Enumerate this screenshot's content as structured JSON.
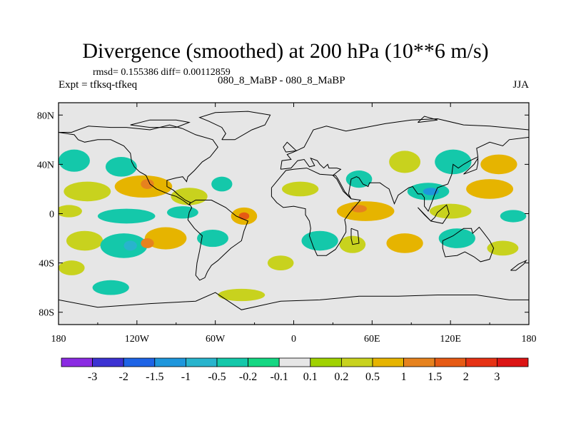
{
  "chart_data": {
    "type": "heatmap",
    "title": "Divergence (smoothed) at 200 hPa (10**6 m/s)",
    "stats_line": "rmsd= 0.155386 diff= 0.00112859",
    "experiment_label": "Expt = tfksq-tfkeq",
    "case_label": "080_8_MaBP - 080_8_MaBP",
    "season_label": "JJA",
    "x_range": [
      -180,
      180
    ],
    "y_range": [
      -90,
      90
    ],
    "x_ticks": [
      {
        "value": -180,
        "label": "180"
      },
      {
        "value": -120,
        "label": "120W"
      },
      {
        "value": -60,
        "label": "60W"
      },
      {
        "value": 0,
        "label": "0"
      },
      {
        "value": 60,
        "label": "60E"
      },
      {
        "value": 120,
        "label": "120E"
      },
      {
        "value": 180,
        "label": "180"
      }
    ],
    "y_ticks": [
      {
        "value": 80,
        "label": "80N"
      },
      {
        "value": 40,
        "label": "40N"
      },
      {
        "value": 0,
        "label": "0"
      },
      {
        "value": -40,
        "label": "40S"
      },
      {
        "value": -80,
        "label": "80S"
      }
    ],
    "levels": [
      -3,
      -2,
      -1.5,
      -1,
      -0.5,
      -0.2,
      -0.1,
      0.1,
      0.2,
      0.5,
      1,
      1.5,
      2,
      3
    ],
    "level_labels": [
      "-3",
      "-2",
      "-1.5",
      "-1",
      "-0.5",
      "-0.2",
      "-0.1",
      "0.1",
      "0.2",
      "0.5",
      "1",
      "1.5",
      "2",
      "3"
    ],
    "colorbar_colors": [
      "#8a2be2",
      "#3c32d2",
      "#1e64e6",
      "#1e96dc",
      "#28b4cd",
      "#14c8aa",
      "#14d782",
      "#e6e6e6",
      "#a0d200",
      "#c8d21e",
      "#e6b400",
      "#e6821e",
      "#e65a14",
      "#e63214",
      "#dc1414"
    ],
    "blobs": [
      {
        "lon": -168,
        "lat": 43,
        "rx": 12,
        "ry": 9,
        "value": -0.3
      },
      {
        "lon": -132,
        "lat": 38,
        "rx": 12,
        "ry": 8,
        "value": -0.3
      },
      {
        "lon": -158,
        "lat": 18,
        "rx": 18,
        "ry": 8,
        "value": 0.3
      },
      {
        "lon": -115,
        "lat": 22,
        "rx": 22,
        "ry": 9,
        "value": 0.5
      },
      {
        "lon": -112,
        "lat": 24,
        "rx": 5,
        "ry": 4,
        "value": 1.2
      },
      {
        "lon": -80,
        "lat": 14,
        "rx": 14,
        "ry": 7,
        "value": 0.3
      },
      {
        "lon": -55,
        "lat": 24,
        "rx": 8,
        "ry": 6,
        "value": -0.3
      },
      {
        "lon": -172,
        "lat": 2,
        "rx": 10,
        "ry": 5,
        "value": 0.3
      },
      {
        "lon": -128,
        "lat": -2,
        "rx": 22,
        "ry": 6,
        "value": -0.3
      },
      {
        "lon": -85,
        "lat": 1,
        "rx": 12,
        "ry": 5,
        "value": -0.3
      },
      {
        "lon": -38,
        "lat": -2,
        "rx": 10,
        "ry": 7,
        "value": 0.8
      },
      {
        "lon": -38,
        "lat": -2,
        "rx": 4,
        "ry": 3,
        "value": 1.6
      },
      {
        "lon": -160,
        "lat": -22,
        "rx": 14,
        "ry": 8,
        "value": 0.3
      },
      {
        "lon": -130,
        "lat": -26,
        "rx": 18,
        "ry": 10,
        "value": -0.3
      },
      {
        "lon": -125,
        "lat": -26,
        "rx": 5,
        "ry": 4,
        "value": -0.8
      },
      {
        "lon": -98,
        "lat": -20,
        "rx": 16,
        "ry": 9,
        "value": 0.5
      },
      {
        "lon": -112,
        "lat": -24,
        "rx": 5,
        "ry": 4,
        "value": 1.2
      },
      {
        "lon": -62,
        "lat": -20,
        "rx": 12,
        "ry": 7,
        "value": -0.3
      },
      {
        "lon": -140,
        "lat": -60,
        "rx": 14,
        "ry": 6,
        "value": -0.3
      },
      {
        "lon": -170,
        "lat": -44,
        "rx": 10,
        "ry": 6,
        "value": 0.3
      },
      {
        "lon": -40,
        "lat": -66,
        "rx": 18,
        "ry": 5,
        "value": 0.3
      },
      {
        "lon": 5,
        "lat": 20,
        "rx": 14,
        "ry": 6,
        "value": 0.3
      },
      {
        "lon": 50,
        "lat": 28,
        "rx": 10,
        "ry": 7,
        "value": -0.3
      },
      {
        "lon": 85,
        "lat": 42,
        "rx": 12,
        "ry": 9,
        "value": 0.3
      },
      {
        "lon": 122,
        "lat": 42,
        "rx": 14,
        "ry": 10,
        "value": -0.3
      },
      {
        "lon": 157,
        "lat": 40,
        "rx": 14,
        "ry": 8,
        "value": 0.5
      },
      {
        "lon": 103,
        "lat": 18,
        "rx": 16,
        "ry": 7,
        "value": -0.5
      },
      {
        "lon": 105,
        "lat": 18,
        "rx": 6,
        "ry": 3,
        "value": -1.2
      },
      {
        "lon": 150,
        "lat": 20,
        "rx": 18,
        "ry": 8,
        "value": 0.5
      },
      {
        "lon": 55,
        "lat": 2,
        "rx": 22,
        "ry": 8,
        "value": 0.5
      },
      {
        "lon": 50,
        "lat": 4,
        "rx": 6,
        "ry": 3,
        "value": 1.2
      },
      {
        "lon": 120,
        "lat": 2,
        "rx": 16,
        "ry": 6,
        "value": 0.3
      },
      {
        "lon": 168,
        "lat": -2,
        "rx": 10,
        "ry": 5,
        "value": -0.3
      },
      {
        "lon": 20,
        "lat": -22,
        "rx": 14,
        "ry": 8,
        "value": -0.3
      },
      {
        "lon": 45,
        "lat": -25,
        "rx": 10,
        "ry": 7,
        "value": 0.3
      },
      {
        "lon": 85,
        "lat": -24,
        "rx": 14,
        "ry": 8,
        "value": 0.5
      },
      {
        "lon": 125,
        "lat": -20,
        "rx": 14,
        "ry": 8,
        "value": -0.3
      },
      {
        "lon": 160,
        "lat": -28,
        "rx": 12,
        "ry": 6,
        "value": 0.3
      },
      {
        "lon": -10,
        "lat": -40,
        "rx": 10,
        "ry": 6,
        "value": 0.3
      }
    ],
    "coastlines": [
      [
        [
          -180,
          66
        ],
        [
          -170,
          66
        ],
        [
          -165,
          68
        ],
        [
          -157,
          71
        ],
        [
          -140,
          70
        ],
        [
          -128,
          70
        ],
        [
          -110,
          68
        ],
        [
          -95,
          72
        ],
        [
          -85,
          69
        ],
        [
          -75,
          64
        ],
        [
          -62,
          60
        ],
        [
          -58,
          54
        ],
        [
          -64,
          46
        ],
        [
          -70,
          42
        ],
        [
          -76,
          35
        ],
        [
          -81,
          30
        ],
        [
          -82,
          26
        ],
        [
          -85,
          30
        ],
        [
          -90,
          29
        ],
        [
          -97,
          27
        ],
        [
          -97,
          22
        ],
        [
          -92,
          19
        ],
        [
          -88,
          15
        ],
        [
          -83,
          11
        ],
        [
          -79,
          9
        ],
        [
          -80,
          7
        ],
        [
          -85,
          11
        ],
        [
          -90,
          14
        ],
        [
          -96,
          16
        ],
        [
          -105,
          20
        ],
        [
          -110,
          24
        ],
        [
          -113,
          31
        ],
        [
          -118,
          34
        ],
        [
          -122,
          38
        ],
        [
          -124,
          42
        ],
        [
          -125,
          49
        ],
        [
          -130,
          55
        ],
        [
          -140,
          60
        ],
        [
          -150,
          60
        ],
        [
          -160,
          58
        ],
        [
          -165,
          60
        ],
        [
          -168,
          64
        ],
        [
          -180,
          66
        ]
      ],
      [
        [
          -80,
          8
        ],
        [
          -75,
          11
        ],
        [
          -63,
          11
        ],
        [
          -52,
          5
        ],
        [
          -44,
          -2
        ],
        [
          -35,
          -6
        ],
        [
          -38,
          -14
        ],
        [
          -40,
          -22
        ],
        [
          -48,
          -28
        ],
        [
          -54,
          -34
        ],
        [
          -58,
          -38
        ],
        [
          -63,
          -42
        ],
        [
          -66,
          -47
        ],
        [
          -68,
          -52
        ],
        [
          -72,
          -54
        ],
        [
          -75,
          -50
        ],
        [
          -74,
          -40
        ],
        [
          -72,
          -30
        ],
        [
          -70,
          -18
        ],
        [
          -76,
          -12
        ],
        [
          -81,
          -5
        ],
        [
          -80,
          1
        ],
        [
          -78,
          5
        ],
        [
          -80,
          8
        ]
      ],
      [
        [
          -55,
          60
        ],
        [
          -45,
          60
        ],
        [
          -32,
          68
        ],
        [
          -22,
          72
        ],
        [
          -18,
          80
        ],
        [
          -35,
          83
        ],
        [
          -60,
          82
        ],
        [
          -72,
          78
        ],
        [
          -65,
          75
        ],
        [
          -55,
          70
        ],
        [
          -52,
          65
        ],
        [
          -55,
          60
        ]
      ],
      [
        [
          -10,
          36
        ],
        [
          -9,
          43
        ],
        [
          -2,
          44
        ],
        [
          -5,
          48
        ],
        [
          0,
          50
        ],
        [
          4,
          52
        ],
        [
          8,
          54
        ],
        [
          10,
          58
        ],
        [
          15,
          68
        ],
        [
          25,
          71
        ],
        [
          40,
          67
        ],
        [
          45,
          68
        ],
        [
          55,
          70
        ],
        [
          70,
          73
        ],
        [
          90,
          76
        ],
        [
          110,
          77
        ],
        [
          130,
          72
        ],
        [
          150,
          71
        ],
        [
          170,
          69
        ],
        [
          180,
          68
        ],
        [
          180,
          62
        ],
        [
          165,
          60
        ],
        [
          160,
          55
        ],
        [
          150,
          58
        ],
        [
          140,
          53
        ],
        [
          141,
          46
        ],
        [
          135,
          43
        ],
        [
          130,
          40
        ],
        [
          126,
          37
        ],
        [
          122,
          40
        ],
        [
          121,
          32
        ],
        [
          118,
          24
        ],
        [
          110,
          21
        ],
        [
          108,
          16
        ],
        [
          106,
          10
        ],
        [
          103,
          2
        ],
        [
          100,
          6
        ],
        [
          100,
          13
        ],
        [
          98,
          16
        ],
        [
          95,
          16
        ],
        [
          91,
          22
        ],
        [
          88,
          21
        ],
        [
          80,
          15
        ],
        [
          77,
          8
        ],
        [
          73,
          20
        ],
        [
          70,
          22
        ],
        [
          66,
          25
        ],
        [
          58,
          25
        ],
        [
          57,
          22
        ],
        [
          53,
          24
        ],
        [
          50,
          29
        ],
        [
          48,
          30
        ],
        [
          44,
          28
        ],
        [
          42,
          16
        ],
        [
          44,
          12
        ],
        [
          38,
          18
        ],
        [
          33,
          28
        ],
        [
          30,
          31
        ],
        [
          36,
          36
        ],
        [
          33,
          37
        ],
        [
          27,
          37
        ],
        [
          26,
          40
        ],
        [
          23,
          37
        ],
        [
          20,
          40
        ],
        [
          18,
          43
        ],
        [
          13,
          45
        ],
        [
          16,
          39
        ],
        [
          12,
          38
        ],
        [
          8,
          44
        ],
        [
          3,
          43
        ],
        [
          -2,
          37
        ],
        [
          -10,
          36
        ]
      ],
      [
        [
          -17,
          21
        ],
        [
          -17,
          14
        ],
        [
          -13,
          9
        ],
        [
          -8,
          5
        ],
        [
          0,
          6
        ],
        [
          9,
          4
        ],
        [
          9,
          -1
        ],
        [
          12,
          -6
        ],
        [
          13,
          -12
        ],
        [
          12,
          -18
        ],
        [
          15,
          -27
        ],
        [
          18,
          -34
        ],
        [
          25,
          -34
        ],
        [
          32,
          -29
        ],
        [
          35,
          -24
        ],
        [
          40,
          -15
        ],
        [
          40,
          -10
        ],
        [
          39,
          -5
        ],
        [
          43,
          1
        ],
        [
          51,
          11
        ],
        [
          44,
          12
        ],
        [
          39,
          18
        ],
        [
          34,
          28
        ],
        [
          32,
          31
        ],
        [
          20,
          32
        ],
        [
          10,
          37
        ],
        [
          0,
          36
        ],
        [
          -6,
          35
        ],
        [
          -10,
          30
        ],
        [
          -17,
          21
        ]
      ],
      [
        [
          44,
          -12
        ],
        [
          49,
          -14
        ],
        [
          50,
          -24
        ],
        [
          45,
          -25
        ],
        [
          44,
          -20
        ],
        [
          44,
          -12
        ]
      ],
      [
        [
          114,
          -22
        ],
        [
          122,
          -18
        ],
        [
          130,
          -12
        ],
        [
          136,
          -12
        ],
        [
          137,
          -16
        ],
        [
          142,
          -11
        ],
        [
          145,
          -15
        ],
        [
          150,
          -22
        ],
        [
          153,
          -28
        ],
        [
          150,
          -37
        ],
        [
          143,
          -39
        ],
        [
          138,
          -35
        ],
        [
          131,
          -31
        ],
        [
          125,
          -34
        ],
        [
          116,
          -35
        ],
        [
          114,
          -28
        ],
        [
          114,
          -22
        ]
      ],
      [
        [
          95,
          5
        ],
        [
          105,
          -6
        ],
        [
          108,
          -3
        ],
        [
          110,
          1
        ],
        [
          117,
          7
        ],
        [
          119,
          0
        ],
        [
          114,
          -8
        ],
        [
          105,
          -6
        ],
        [
          100,
          -1
        ],
        [
          95,
          5
        ]
      ],
      [
        [
          130,
          32
        ],
        [
          135,
          34
        ],
        [
          140,
          36
        ],
        [
          141,
          41
        ],
        [
          141,
          45
        ],
        [
          138,
          40
        ],
        [
          133,
          35
        ],
        [
          130,
          32
        ]
      ],
      [
        [
          -6,
          50
        ],
        [
          2,
          51
        ],
        [
          -3,
          56
        ],
        [
          -5,
          58
        ],
        [
          -8,
          54
        ],
        [
          -6,
          50
        ]
      ],
      [
        [
          -180,
          -70
        ],
        [
          -150,
          -76
        ],
        [
          -110,
          -73
        ],
        [
          -75,
          -71
        ],
        [
          -60,
          -64
        ],
        [
          -40,
          -78
        ],
        [
          -10,
          -71
        ],
        [
          20,
          -70
        ],
        [
          50,
          -67
        ],
        [
          80,
          -67
        ],
        [
          110,
          -66
        ],
        [
          140,
          -66
        ],
        [
          165,
          -70
        ],
        [
          180,
          -70
        ]
      ],
      [
        [
          166,
          -46
        ],
        [
          172,
          -41
        ],
        [
          178,
          -38
        ],
        [
          176,
          -41
        ],
        [
          170,
          -46
        ],
        [
          166,
          -46
        ]
      ],
      [
        [
          95,
          74
        ],
        [
          110,
          76
        ],
        [
          100,
          79
        ],
        [
          95,
          74
        ]
      ],
      [
        [
          -125,
          72
        ],
        [
          -110,
          76
        ],
        [
          -90,
          76
        ],
        [
          -80,
          74
        ],
        [
          -90,
          70
        ],
        [
          -110,
          70
        ],
        [
          -125,
          72
        ]
      ]
    ]
  }
}
